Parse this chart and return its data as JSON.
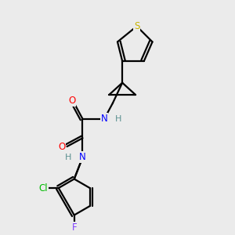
{
  "background_color": "#ebebeb",
  "atom_colors": {
    "S": "#c8b400",
    "N": "#0000ff",
    "O": "#ff0000",
    "Cl": "#00bb00",
    "F": "#8040ff",
    "C": "#000000",
    "H": "#5a9090"
  },
  "lw": 1.6,
  "fontsize": 8.5
}
